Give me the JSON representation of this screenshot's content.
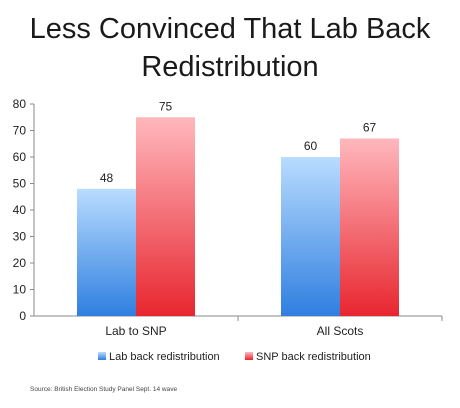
{
  "title_lines": [
    "Less Convinced That Lab Back",
    "Redistribution"
  ],
  "source": "Source: British Election Study Panel Sept. 14 wave",
  "colors": {
    "blue_top": "#b9dcff",
    "blue_bottom": "#2f7fe0",
    "red_top": "#ffb8bd",
    "red_bottom": "#e8262f"
  },
  "chart_data": {
    "type": "bar",
    "categories": [
      "Lab to SNP",
      "All Scots"
    ],
    "series": [
      {
        "name": "Lab back redistribution",
        "values": [
          48,
          60
        ]
      },
      {
        "name": "SNP back redistribution",
        "values": [
          75,
          67
        ]
      }
    ],
    "ylim": [
      0,
      80
    ],
    "yticks": [
      0,
      10,
      20,
      30,
      40,
      50,
      60,
      70,
      80
    ],
    "legend": "bottom",
    "grid": false,
    "data_labels": true
  }
}
